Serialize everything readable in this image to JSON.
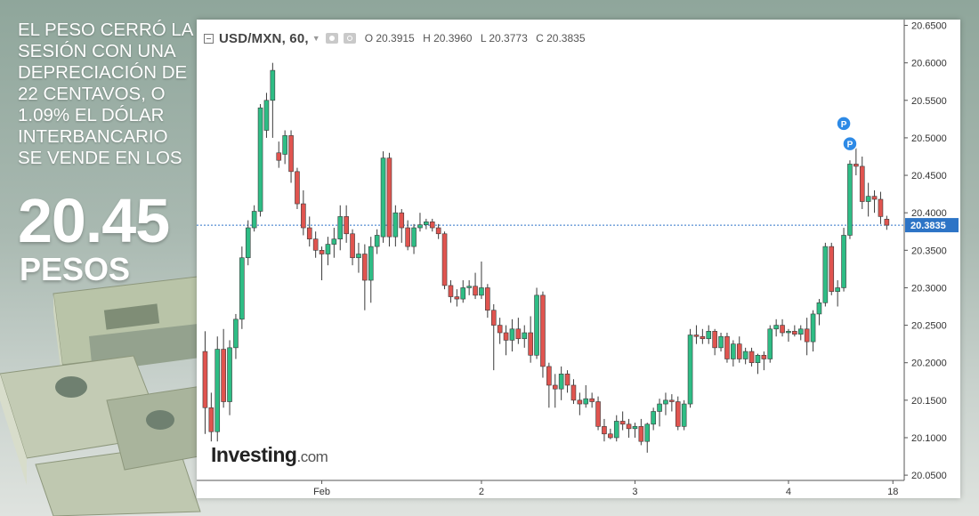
{
  "headline": {
    "lines": [
      "EL PESO CERRÓ LA",
      "SESIÓN CON UNA",
      "DEPRECIACIÓN DE",
      "22 CENTAVOS, O",
      "1.09% EL DÓLAR",
      "INTERBANCARIO",
      "SE VENDE EN LOS"
    ],
    "big_value": "20.45",
    "big_unit": "PESOS"
  },
  "chart_header": {
    "symbol": "USD/MXN, 60,",
    "open": "O 20.3915",
    "high": "H 20.3960",
    "low": "L 20.3773",
    "close": "C 20.3835"
  },
  "watermark": {
    "brand": "Investing",
    "domain": ".com"
  },
  "chart_data": {
    "type": "candlestick",
    "y_ticks": [
      "20.6500",
      "20.6000",
      "20.5500",
      "20.5000",
      "20.4500",
      "20.4000",
      "20.3500",
      "20.3000",
      "20.2500",
      "20.2000",
      "20.1500",
      "20.1000",
      "20.0500"
    ],
    "y_tick_values": [
      20.65,
      20.6,
      20.55,
      20.5,
      20.45,
      20.4,
      20.35,
      20.3,
      20.25,
      20.2,
      20.15,
      20.1,
      20.05
    ],
    "ylim": [
      20.043,
      20.653
    ],
    "x_ticks": [
      {
        "label": "Feb",
        "index": 19
      },
      {
        "label": "2",
        "index": 45
      },
      {
        "label": "3",
        "index": 70
      },
      {
        "label": "4",
        "index": 95
      },
      {
        "label": "18",
        "index": 112
      }
    ],
    "last_price": "20.3835",
    "last_price_value": 20.3835,
    "markers": [
      {
        "label": "P",
        "index": 104,
        "value": 20.519
      },
      {
        "label": "P",
        "index": 105,
        "value": 20.492
      }
    ],
    "colors": {
      "up": "#2ebd85",
      "down": "#e0544f",
      "last_price": "#2d74c6"
    },
    "candles": [
      [
        20.215,
        20.242,
        20.105,
        20.14
      ],
      [
        20.14,
        20.16,
        20.095,
        20.108
      ],
      [
        20.108,
        20.235,
        20.095,
        20.218
      ],
      [
        20.218,
        20.245,
        20.14,
        20.148
      ],
      [
        20.148,
        20.23,
        20.13,
        20.22
      ],
      [
        20.22,
        20.265,
        20.205,
        20.258
      ],
      [
        20.258,
        20.355,
        20.245,
        20.34
      ],
      [
        20.34,
        20.39,
        20.33,
        20.38
      ],
      [
        20.38,
        20.41,
        20.375,
        20.402
      ],
      [
        20.402,
        20.545,
        20.395,
        20.54
      ],
      [
        20.51,
        20.56,
        20.5,
        20.55
      ],
      [
        20.55,
        20.6,
        20.5,
        20.59
      ],
      [
        20.48,
        20.495,
        20.46,
        20.47
      ],
      [
        20.478,
        20.51,
        20.465,
        20.503
      ],
      [
        20.503,
        20.51,
        20.44,
        20.455
      ],
      [
        20.455,
        20.46,
        20.405,
        20.412
      ],
      [
        20.412,
        20.43,
        20.37,
        20.38
      ],
      [
        20.38,
        20.395,
        20.355,
        20.365
      ],
      [
        20.365,
        20.375,
        20.34,
        20.35
      ],
      [
        20.35,
        20.355,
        20.31,
        20.345
      ],
      [
        20.345,
        20.368,
        20.33,
        20.358
      ],
      [
        20.358,
        20.38,
        20.34,
        20.365
      ],
      [
        20.365,
        20.41,
        20.35,
        20.395
      ],
      [
        20.395,
        20.41,
        20.36,
        20.372
      ],
      [
        20.372,
        20.378,
        20.33,
        20.34
      ],
      [
        20.34,
        20.36,
        20.32,
        20.345
      ],
      [
        20.345,
        20.358,
        20.27,
        20.31
      ],
      [
        20.31,
        20.368,
        20.28,
        20.355
      ],
      [
        20.355,
        20.378,
        20.345,
        20.37
      ],
      [
        20.368,
        20.482,
        20.36,
        20.473
      ],
      [
        20.473,
        20.48,
        20.355,
        20.368
      ],
      [
        20.368,
        20.41,
        20.355,
        20.4
      ],
      [
        20.4,
        20.405,
        20.36,
        20.38
      ],
      [
        20.38,
        20.39,
        20.35,
        20.355
      ],
      [
        20.355,
        20.385,
        20.345,
        20.38
      ],
      [
        20.38,
        20.4,
        20.375,
        20.384
      ],
      [
        20.384,
        20.392,
        20.378,
        20.388
      ],
      [
        20.388,
        20.392,
        20.375,
        20.38
      ],
      [
        20.38,
        20.385,
        20.365,
        20.372
      ],
      [
        20.372,
        20.375,
        20.298,
        20.303
      ],
      [
        20.303,
        20.31,
        20.28,
        20.288
      ],
      [
        20.288,
        20.298,
        20.275,
        20.285
      ],
      [
        20.285,
        20.31,
        20.28,
        20.3
      ],
      [
        20.3,
        20.31,
        20.29,
        20.302
      ],
      [
        20.302,
        20.32,
        20.285,
        20.29
      ],
      [
        20.29,
        20.335,
        20.285,
        20.3
      ],
      [
        20.3,
        20.305,
        20.26,
        20.27
      ],
      [
        20.27,
        20.278,
        20.19,
        20.25
      ],
      [
        20.25,
        20.26,
        20.225,
        20.24
      ],
      [
        20.24,
        20.25,
        20.21,
        20.23
      ],
      [
        20.23,
        20.258,
        20.215,
        20.245
      ],
      [
        20.245,
        20.26,
        20.225,
        20.232
      ],
      [
        20.232,
        20.25,
        20.22,
        20.24
      ],
      [
        20.24,
        20.262,
        20.2,
        20.21
      ],
      [
        20.21,
        20.3,
        20.205,
        20.29
      ],
      [
        20.29,
        20.295,
        20.18,
        20.195
      ],
      [
        20.195,
        20.2,
        20.14,
        20.17
      ],
      [
        20.17,
        20.185,
        20.14,
        20.165
      ],
      [
        20.165,
        20.195,
        20.15,
        20.185
      ],
      [
        20.185,
        20.19,
        20.16,
        20.17
      ],
      [
        20.17,
        20.178,
        20.145,
        20.15
      ],
      [
        20.15,
        20.16,
        20.13,
        20.145
      ],
      [
        20.145,
        20.17,
        20.14,
        20.152
      ],
      [
        20.152,
        20.16,
        20.14,
        20.148
      ],
      [
        20.148,
        20.155,
        20.11,
        20.115
      ],
      [
        20.115,
        20.125,
        20.095,
        20.105
      ],
      [
        20.105,
        20.112,
        20.098,
        20.1
      ],
      [
        20.1,
        20.13,
        20.095,
        20.122
      ],
      [
        20.122,
        20.135,
        20.11,
        20.118
      ],
      [
        20.118,
        20.125,
        20.1,
        20.112
      ],
      [
        20.112,
        20.12,
        20.1,
        20.115
      ],
      [
        20.115,
        20.125,
        20.09,
        20.095
      ],
      [
        20.095,
        20.12,
        20.08,
        20.118
      ],
      [
        20.118,
        20.14,
        20.11,
        20.135
      ],
      [
        20.135,
        20.152,
        20.115,
        20.145
      ],
      [
        20.145,
        20.16,
        20.13,
        20.15
      ],
      [
        20.15,
        20.158,
        20.135,
        20.148
      ],
      [
        20.148,
        20.155,
        20.11,
        20.115
      ],
      [
        20.115,
        20.15,
        20.11,
        20.145
      ],
      [
        20.145,
        20.245,
        20.14,
        20.237
      ],
      [
        20.237,
        20.25,
        20.225,
        20.235
      ],
      [
        20.235,
        20.245,
        20.225,
        20.232
      ],
      [
        20.232,
        20.25,
        20.225,
        20.242
      ],
      [
        20.242,
        20.245,
        20.21,
        20.22
      ],
      [
        20.22,
        20.24,
        20.215,
        20.235
      ],
      [
        20.235,
        20.24,
        20.2,
        20.205
      ],
      [
        20.205,
        20.23,
        20.195,
        20.225
      ],
      [
        20.225,
        20.235,
        20.2,
        20.205
      ],
      [
        20.205,
        20.22,
        20.198,
        20.215
      ],
      [
        20.215,
        20.22,
        20.195,
        20.2
      ],
      [
        20.2,
        20.212,
        20.185,
        20.21
      ],
      [
        20.21,
        20.215,
        20.19,
        20.205
      ],
      [
        20.205,
        20.25,
        20.2,
        20.245
      ],
      [
        20.245,
        20.258,
        20.235,
        20.25
      ],
      [
        20.25,
        20.258,
        20.235,
        20.24
      ],
      [
        20.24,
        20.245,
        20.228,
        20.242
      ],
      [
        20.242,
        20.25,
        20.235,
        20.238
      ],
      [
        20.238,
        20.25,
        20.23,
        20.245
      ],
      [
        20.245,
        20.26,
        20.21,
        20.228
      ],
      [
        20.228,
        20.27,
        20.215,
        20.265
      ],
      [
        20.265,
        20.285,
        20.25,
        20.28
      ],
      [
        20.28,
        20.36,
        20.275,
        20.355
      ],
      [
        20.355,
        20.36,
        20.29,
        20.295
      ],
      [
        20.295,
        20.31,
        20.275,
        20.3
      ],
      [
        20.3,
        20.38,
        20.295,
        20.37
      ],
      [
        20.37,
        20.47,
        20.365,
        20.465
      ],
      [
        20.465,
        20.49,
        20.45,
        20.462
      ],
      [
        20.462,
        20.475,
        20.405,
        20.415
      ],
      [
        20.415,
        20.44,
        20.395,
        20.422
      ],
      [
        20.422,
        20.43,
        20.4,
        20.418
      ],
      [
        20.418,
        20.428,
        20.385,
        20.395
      ],
      [
        20.3915,
        20.396,
        20.3773,
        20.3835
      ]
    ]
  }
}
